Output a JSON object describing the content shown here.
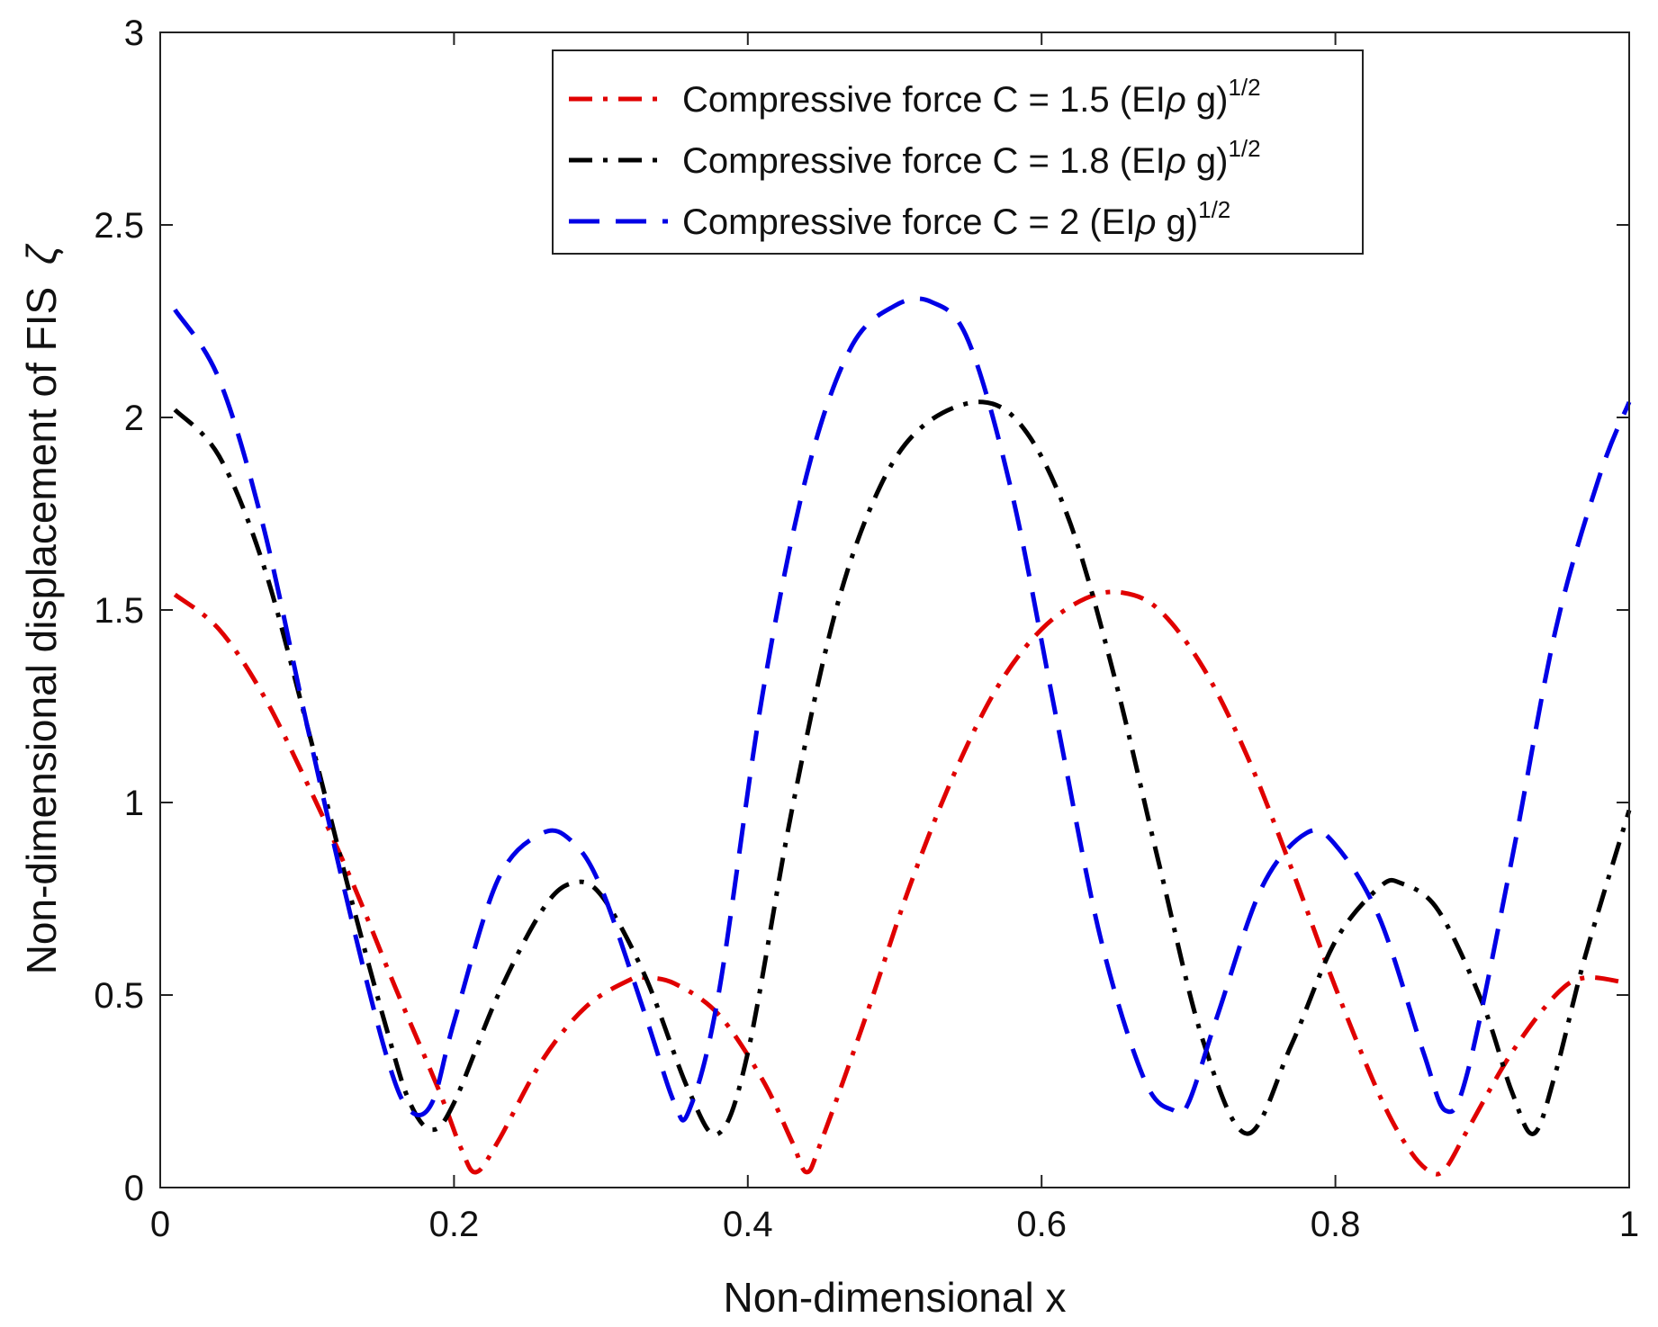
{
  "chart_data": {
    "type": "line",
    "title": "",
    "xlabel": "Non-dimensional x",
    "ylabel_text": "Non-dimensional displacement of FIS",
    "ylabel_symbol": "ζ",
    "xlim": [
      0,
      1
    ],
    "ylim": [
      0,
      3
    ],
    "xticks": [
      0,
      0.2,
      0.4,
      0.6,
      0.8,
      1
    ],
    "xtick_labels": [
      "0",
      "0.2",
      "0.4",
      "0.6",
      "0.8",
      "1"
    ],
    "yticks": [
      0,
      0.5,
      1,
      1.5,
      2,
      2.5,
      3
    ],
    "ytick_labels": [
      "0",
      "0.5",
      "1",
      "1.5",
      "2",
      "2.5",
      "3"
    ],
    "grid": false,
    "legend_position": "top-center",
    "series": [
      {
        "name": "Compressive force C = 1.5 (EIρ g)1/2",
        "legend_main": "Compressive force C = 1.5 (EI",
        "legend_rho": "ρ",
        "legend_tail": " g)",
        "legend_sup": "1/2",
        "color": "#e00000",
        "style": "dashdot",
        "x": [
          0.01,
          0.04,
          0.07,
          0.1,
          0.13,
          0.16,
          0.19,
          0.205,
          0.215,
          0.23,
          0.26,
          0.29,
          0.32,
          0.33,
          0.35,
          0.38,
          0.41,
          0.43,
          0.44,
          0.45,
          0.48,
          0.51,
          0.54,
          0.57,
          0.6,
          0.63,
          0.655,
          0.68,
          0.71,
          0.74,
          0.77,
          0.8,
          0.83,
          0.85,
          0.865,
          0.875,
          0.89,
          0.92,
          0.95,
          0.97,
          1.0
        ],
        "y": [
          1.54,
          1.45,
          1.28,
          1.05,
          0.8,
          0.52,
          0.25,
          0.1,
          0.04,
          0.12,
          0.33,
          0.47,
          0.54,
          0.545,
          0.53,
          0.45,
          0.28,
          0.12,
          0.04,
          0.12,
          0.44,
          0.78,
          1.07,
          1.3,
          1.45,
          1.53,
          1.545,
          1.5,
          1.35,
          1.12,
          0.83,
          0.52,
          0.24,
          0.1,
          0.04,
          0.05,
          0.15,
          0.35,
          0.5,
          0.545,
          0.53
        ]
      },
      {
        "name": "Compressive force C = 1.8 (EIρ g)1/2",
        "legend_main": "Compressive force C = 1.8 (EI",
        "legend_rho": "ρ",
        "legend_tail": " g)",
        "legend_sup": "1/2",
        "color": "#000000",
        "style": "dashdot",
        "x": [
          0.01,
          0.04,
          0.07,
          0.1,
          0.13,
          0.155,
          0.17,
          0.185,
          0.2,
          0.23,
          0.26,
          0.28,
          0.3,
          0.33,
          0.36,
          0.38,
          0.4,
          0.43,
          0.46,
          0.49,
          0.52,
          0.56,
          0.59,
          0.62,
          0.65,
          0.68,
          0.71,
          0.74,
          0.77,
          0.8,
          0.83,
          0.845,
          0.87,
          0.9,
          0.92,
          0.935,
          0.95,
          0.97,
          1.0
        ],
        "y": [
          2.02,
          1.9,
          1.62,
          1.2,
          0.75,
          0.4,
          0.22,
          0.15,
          0.22,
          0.5,
          0.72,
          0.79,
          0.76,
          0.55,
          0.25,
          0.14,
          0.35,
          0.98,
          1.5,
          1.82,
          1.98,
          2.04,
          1.96,
          1.72,
          1.32,
          0.84,
          0.38,
          0.14,
          0.37,
          0.64,
          0.78,
          0.79,
          0.72,
          0.48,
          0.25,
          0.14,
          0.3,
          0.6,
          0.98
        ]
      },
      {
        "name": "Compressive force C = 2 (EIρ g)1/2",
        "legend_main": "Compressive force C = 2 (EI",
        "legend_rho": "ρ",
        "legend_tail": " g)",
        "legend_sup": "1/2",
        "color": "#0000e6",
        "style": "dashed",
        "x": [
          0.01,
          0.04,
          0.07,
          0.1,
          0.13,
          0.155,
          0.17,
          0.185,
          0.2,
          0.23,
          0.26,
          0.28,
          0.3,
          0.33,
          0.35,
          0.36,
          0.38,
          0.41,
          0.44,
          0.47,
          0.5,
          0.525,
          0.55,
          0.58,
          0.61,
          0.64,
          0.67,
          0.69,
          0.7,
          0.72,
          0.75,
          0.78,
          0.8,
          0.83,
          0.86,
          0.875,
          0.89,
          0.92,
          0.95,
          0.98,
          1.0
        ],
        "y": [
          2.28,
          2.1,
          1.72,
          1.2,
          0.7,
          0.33,
          0.2,
          0.22,
          0.43,
          0.8,
          0.92,
          0.9,
          0.78,
          0.45,
          0.22,
          0.2,
          0.5,
          1.28,
          1.85,
          2.18,
          2.29,
          2.3,
          2.2,
          1.8,
          1.22,
          0.65,
          0.28,
          0.2,
          0.22,
          0.45,
          0.78,
          0.92,
          0.89,
          0.7,
          0.35,
          0.2,
          0.3,
          0.85,
          1.45,
          1.85,
          2.04
        ]
      }
    ]
  }
}
